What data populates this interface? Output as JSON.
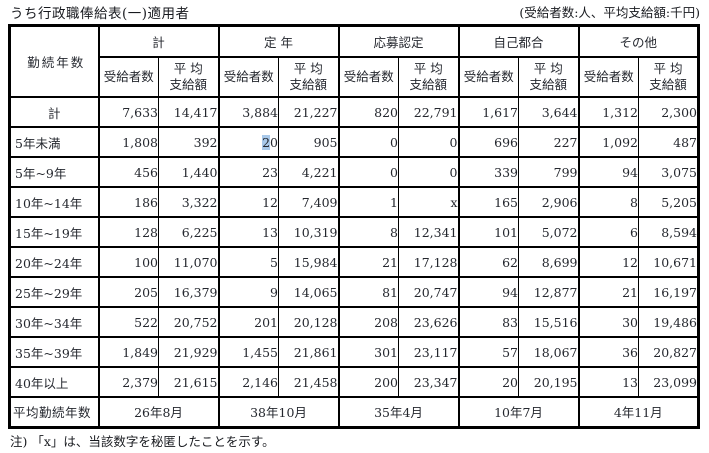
{
  "title": "うち行政職俸給表(一)適用者",
  "units_note": "(受給者数:人、平均支給額:千円)",
  "table": {
    "corner_label": "勤続年数",
    "groups": [
      "計",
      "定 年",
      "応募認定",
      "自己都合",
      "その他"
    ],
    "sub_recipients": "受給者数",
    "sub_avg_line1": "平 均",
    "sub_avg_line2": "支給額",
    "rows": [
      {
        "label": "計",
        "values": [
          "7,633",
          "14,417",
          "3,884",
          "21,227",
          "820",
          "22,791",
          "1,617",
          "3,644",
          "1,312",
          "2,300"
        ]
      },
      {
        "label": "5年未満",
        "values": [
          "1,808",
          "392",
          "20",
          "905",
          "0",
          "0",
          "696",
          "227",
          "1,092",
          "487"
        ]
      },
      {
        "label": "5年~9年",
        "values": [
          "456",
          "1,440",
          "23",
          "4,221",
          "0",
          "0",
          "339",
          "799",
          "94",
          "3,075"
        ]
      },
      {
        "label": "10年~14年",
        "values": [
          "186",
          "3,322",
          "12",
          "7,409",
          "1",
          "x",
          "165",
          "2,906",
          "8",
          "5,205"
        ]
      },
      {
        "label": "15年~19年",
        "values": [
          "128",
          "6,225",
          "13",
          "10,319",
          "8",
          "12,341",
          "101",
          "5,072",
          "6",
          "8,594"
        ]
      },
      {
        "label": "20年~24年",
        "values": [
          "100",
          "11,070",
          "5",
          "15,984",
          "21",
          "17,128",
          "62",
          "8,699",
          "12",
          "10,671"
        ]
      },
      {
        "label": "25年~29年",
        "values": [
          "205",
          "16,379",
          "9",
          "14,065",
          "81",
          "20,747",
          "94",
          "12,877",
          "21",
          "16,197"
        ]
      },
      {
        "label": "30年~34年",
        "values": [
          "522",
          "20,752",
          "201",
          "20,128",
          "208",
          "23,626",
          "83",
          "15,516",
          "30",
          "19,486"
        ]
      },
      {
        "label": "35年~39年",
        "values": [
          "1,849",
          "21,929",
          "1,455",
          "21,861",
          "301",
          "23,117",
          "57",
          "18,067",
          "36",
          "20,827"
        ]
      },
      {
        "label": "40年以上",
        "values": [
          "2,379",
          "21,615",
          "2,146",
          "21,458",
          "200",
          "23,347",
          "20",
          "20,195",
          "13",
          "23,099"
        ]
      }
    ],
    "avg_row": {
      "label": "平均勤続年数",
      "values": [
        "26年8月",
        "38年10月",
        "35年4月",
        "10年7月",
        "4年11月"
      ]
    },
    "selection": {
      "row": 1,
      "col": 2,
      "selected_text": "2",
      "rest_text": "0",
      "highlight_color": "#a9c9ea"
    }
  },
  "footnote": "注) 「x」は、当該数字を秘匿したことを示す。"
}
